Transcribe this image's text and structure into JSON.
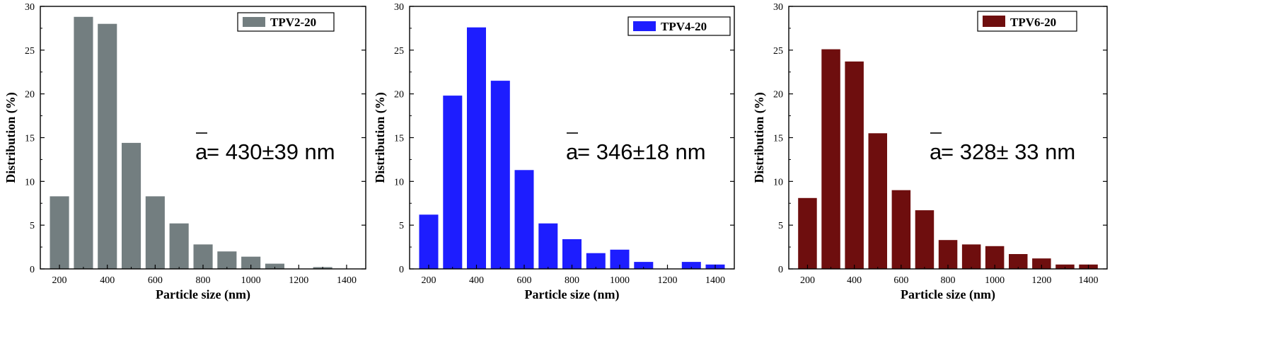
{
  "chart_data": [
    {
      "type": "bar",
      "xlabel": "Particle size (nm)",
      "ylabel": "Distribution (%)",
      "xlim": [
        120,
        1480
      ],
      "ylim": [
        0,
        30
      ],
      "xticks": [
        200,
        400,
        600,
        800,
        1000,
        1200,
        1400
      ],
      "yticks": [
        0,
        5,
        10,
        15,
        20,
        25,
        30
      ],
      "bar_width": 80,
      "legend": {
        "label": "TPV2-20",
        "position": "top-right"
      },
      "annotation": {
        "prefix": "a",
        "text": " = 430±39 nm"
      },
      "color": "#737e80",
      "x": [
        200,
        300,
        400,
        500,
        600,
        700,
        800,
        900,
        1000,
        1100,
        1200,
        1300,
        1400
      ],
      "values": [
        8.3,
        28.8,
        28.0,
        14.4,
        8.3,
        5.2,
        2.8,
        2.0,
        1.4,
        0.6,
        0,
        0.2,
        0
      ]
    },
    {
      "type": "bar",
      "xlabel": "Particle size (nm)",
      "ylabel": "Distribution (%)",
      "xlim": [
        120,
        1480
      ],
      "ylim": [
        0,
        30
      ],
      "xticks": [
        200,
        400,
        600,
        800,
        1000,
        1200,
        1400
      ],
      "yticks": [
        0,
        5,
        10,
        15,
        20,
        25,
        30
      ],
      "bar_width": 80,
      "legend": {
        "label": "TPV4-20",
        "position": "top-right"
      },
      "annotation": {
        "prefix": "a",
        "text": " = 346±18 nm"
      },
      "color": "#1d1dff",
      "x": [
        200,
        300,
        400,
        500,
        600,
        700,
        800,
        900,
        1000,
        1100,
        1200,
        1300,
        1400
      ],
      "values": [
        6.2,
        19.8,
        27.6,
        21.5,
        11.3,
        5.2,
        3.4,
        1.8,
        2.2,
        0.8,
        0,
        0.8,
        0.5
      ]
    },
    {
      "type": "bar",
      "xlabel": "Particle size (nm)",
      "ylabel": "Distribution (%)",
      "xlim": [
        120,
        1480
      ],
      "ylim": [
        0,
        30
      ],
      "xticks": [
        200,
        400,
        600,
        800,
        1000,
        1200,
        1400
      ],
      "yticks": [
        0,
        5,
        10,
        15,
        20,
        25,
        30
      ],
      "bar_width": 80,
      "legend": {
        "label": "TPV6-20",
        "position": "top-right"
      },
      "annotation": {
        "prefix": "a",
        "text": " = 328± 33 nm"
      },
      "color": "#6e0e0e",
      "x": [
        200,
        300,
        400,
        500,
        600,
        700,
        800,
        900,
        1000,
        1100,
        1200,
        1300,
        1400
      ],
      "values": [
        8.1,
        25.1,
        23.7,
        15.5,
        9.0,
        6.7,
        3.3,
        2.8,
        2.6,
        1.7,
        1.2,
        0.5,
        0.5
      ]
    }
  ]
}
